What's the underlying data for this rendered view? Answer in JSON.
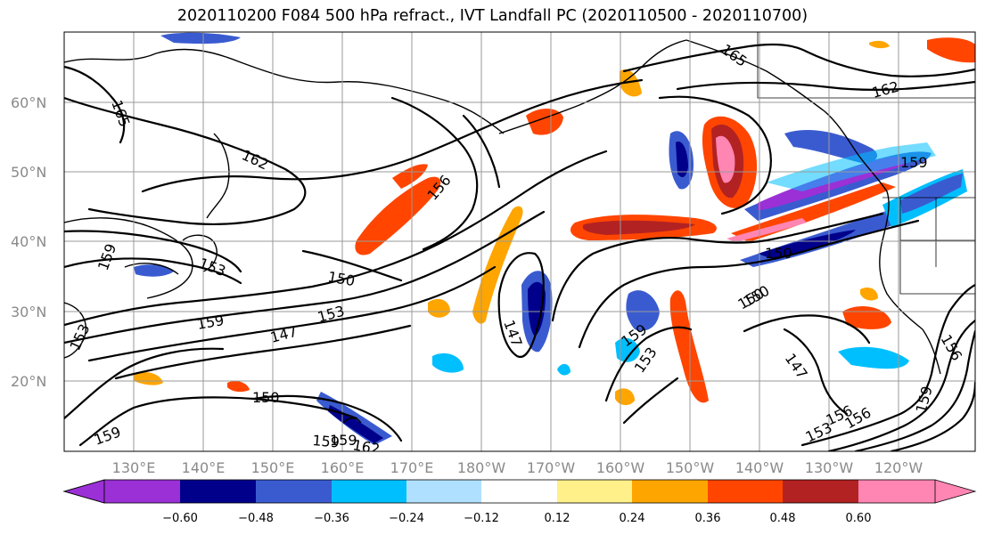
{
  "title": "2020110200 F084 500 hPa refract., IVT Landfall PC (2020110500 - 2020110700)",
  "lat_labels": [
    "60°N",
    "50°N",
    "40°N",
    "30°N",
    "20°N"
  ],
  "lon_labels": [
    "130°E",
    "140°E",
    "150°E",
    "160°E",
    "170°E",
    "180°W",
    "170°W",
    "160°W",
    "150°W",
    "140°W",
    "130°W",
    "120°W"
  ],
  "contour_labels": [
    "165",
    "165",
    "162",
    "162",
    "159",
    "156",
    "153",
    "150",
    "150",
    "153",
    "147",
    "159",
    "147",
    "150",
    "153",
    "156",
    "159",
    "159",
    "159",
    "156",
    "147",
    "153",
    "156",
    "159",
    "150",
    "153",
    "159",
    "159",
    "162",
    "150"
  ],
  "colorbar": {
    "colors": [
      "#9b30d6",
      "#00008b",
      "#3a5bd0",
      "#00bfff",
      "#b0e0ff",
      "#ffffff",
      "#fff08a",
      "#ffa500",
      "#ff4500",
      "#b22222",
      "#ff85b3"
    ],
    "tick_labels": [
      "−0.60",
      "−0.48",
      "−0.36",
      "−0.24",
      "−0.12",
      "0.12",
      "0.24",
      "0.36",
      "0.48",
      "0.60"
    ]
  },
  "shade_colors": {
    "pos_low": "#fff08a",
    "pos_mid": "#ffa500",
    "pos_high": "#ff4500",
    "pos_max": "#b22222",
    "pos_top": "#ff85b3",
    "neg_low": "#b0e0ff",
    "neg_mid": "#00bfff",
    "neg_high": "#3a5bd0",
    "neg_max": "#00008b",
    "neg_top": "#9b30d6"
  }
}
